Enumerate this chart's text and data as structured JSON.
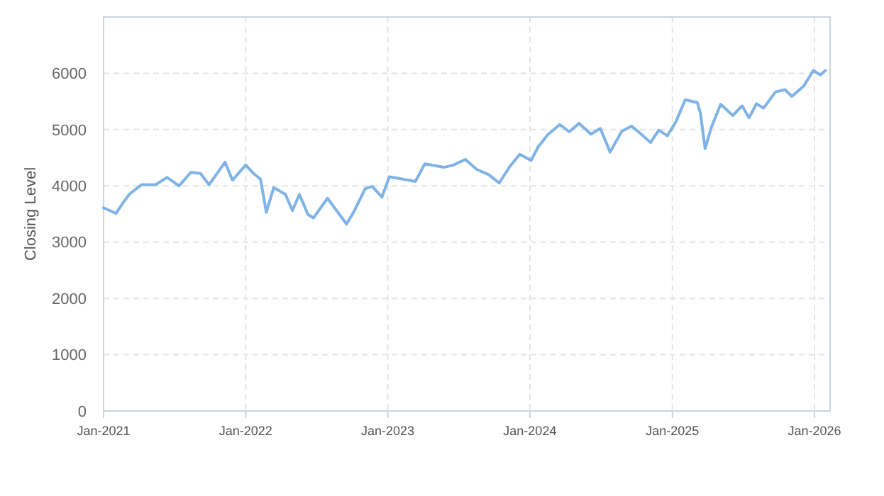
{
  "chart_data": {
    "type": "line",
    "ylabel": "Closing Level",
    "x": [
      "2021-01-01",
      "2021-02-02",
      "2021-02-20",
      "2021-03-08",
      "2021-04-08",
      "2021-05-14",
      "2021-06-13",
      "2021-07-14",
      "2021-08-13",
      "2021-09-07",
      "2021-09-29",
      "2021-11-09",
      "2021-11-28",
      "2022-01-01",
      "2022-01-21",
      "2022-02-08",
      "2022-02-23",
      "2022-03-14",
      "2022-04-13",
      "2022-05-01",
      "2022-05-19",
      "2022-06-10",
      "2022-06-24",
      "2022-07-30",
      "2022-08-30",
      "2022-09-17",
      "2022-10-05",
      "2022-11-04",
      "2022-11-22",
      "2022-12-17",
      "2023-01-05",
      "2023-03-13",
      "2023-04-06",
      "2023-05-25",
      "2023-06-19",
      "2023-07-19",
      "2023-08-18",
      "2023-09-17",
      "2023-10-14",
      "2023-11-11",
      "2023-12-06",
      "2024-01-04",
      "2024-01-22",
      "2024-02-16",
      "2024-03-18",
      "2024-04-11",
      "2024-05-06",
      "2024-06-06",
      "2024-06-30",
      "2024-07-25",
      "2024-08-24",
      "2024-09-18",
      "2024-10-06",
      "2024-11-06",
      "2024-11-27",
      "2024-12-19",
      "2025-01-10",
      "2025-02-03",
      "2025-03-06",
      "2025-03-14",
      "2025-03-26",
      "2025-04-11",
      "2025-05-05",
      "2025-06-05",
      "2025-06-29",
      "2025-07-17",
      "2025-08-05",
      "2025-08-23",
      "2025-09-23",
      "2025-10-17",
      "2025-11-04",
      "2025-12-05",
      "2025-12-29",
      "2026-01-16",
      "2026-01-29"
    ],
    "series": [
      {
        "color": "#7fb3e6",
        "values": [
          3610,
          3510,
          3700,
          3850,
          4020,
          4020,
          4150,
          4000,
          4240,
          4220,
          4020,
          4420,
          4100,
          4370,
          4220,
          4120,
          3530,
          3970,
          3850,
          3560,
          3850,
          3490,
          3430,
          3780,
          3490,
          3320,
          3530,
          3950,
          3990,
          3800,
          4160,
          4080,
          4390,
          4330,
          4370,
          4470,
          4290,
          4200,
          4050,
          4350,
          4560,
          4450,
          4690,
          4910,
          5090,
          4960,
          5110,
          4920,
          5020,
          4600,
          4970,
          5060,
          4960,
          4770,
          4990,
          4890,
          5140,
          5530,
          5480,
          5290,
          4660,
          5040,
          5450,
          5250,
          5420,
          5210,
          5460,
          5380,
          5670,
          5710,
          5590,
          5780,
          6050,
          5970,
          6050
        ]
      }
    ],
    "xlim": [
      "2021-01-01",
      "2026-02-10"
    ],
    "xticks": [
      {
        "value": "2021-01-01",
        "label": "Jan-2021"
      },
      {
        "value": "2022-01-01",
        "label": "Jan-2022"
      },
      {
        "value": "2023-01-01",
        "label": "Jan-2023"
      },
      {
        "value": "2024-01-01",
        "label": "Jan-2024"
      },
      {
        "value": "2025-01-01",
        "label": "Jan-2025"
      },
      {
        "value": "2026-01-01",
        "label": "Jan-2026"
      }
    ],
    "ylim": [
      0,
      7000
    ],
    "yticks": [
      0,
      1000,
      2000,
      3000,
      4000,
      5000,
      6000
    ],
    "grid": true,
    "line_style": "solid"
  }
}
